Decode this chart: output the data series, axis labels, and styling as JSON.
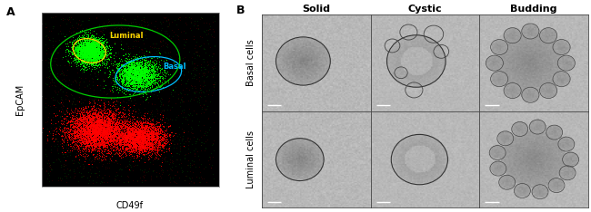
{
  "panel_A_label": "A",
  "panel_B_label": "B",
  "xlabel": "CD49f",
  "ylabel": "EpCAM",
  "luminal_label": "Luminal",
  "basal_label": "Basal",
  "col_labels": [
    "Solid",
    "Cystic",
    "Budding"
  ],
  "row_labels": [
    "Basal cells",
    "Luminal cells"
  ],
  "scatter_bg": "#000000",
  "green_color": "#00ff00",
  "red_color": "#ff0000",
  "luminal_gate_color": "#ffd700",
  "basal_gate_color": "#00bfff",
  "outer_gate_color": "#00cc00",
  "micro_bg": "#b8b8b8",
  "panel_label_fontsize": 9,
  "axis_label_fontsize": 7,
  "gate_label_fontsize": 6,
  "col_label_fontsize": 8,
  "row_label_fontsize": 7
}
